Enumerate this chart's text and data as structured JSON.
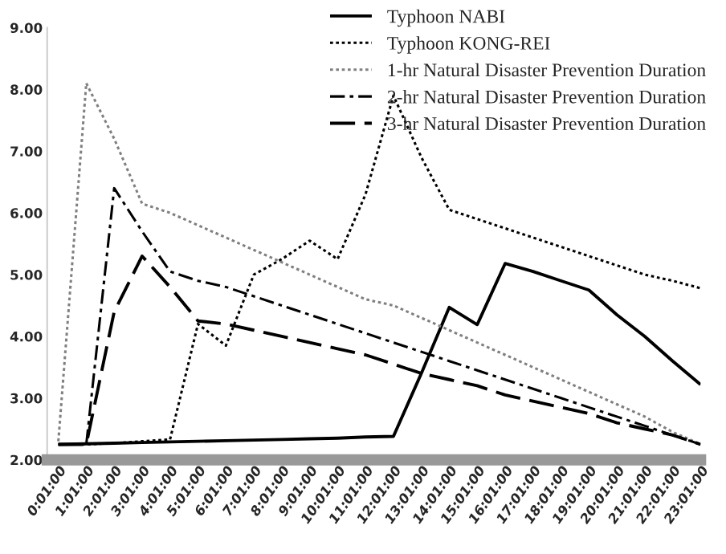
{
  "chart_data": {
    "type": "line",
    "categories": [
      "0:01:00",
      "1:01:00",
      "2:01:00",
      "3:01:00",
      "4:01:00",
      "5:01:00",
      "6:01:00",
      "7:01:00",
      "8:01:00",
      "9:01:00",
      "10:01:00",
      "11:01:00",
      "12:01:00",
      "13:01:00",
      "14:01:00",
      "15:01:00",
      "16:01:00",
      "17:01:00",
      "18:01:00",
      "19:01:00",
      "20:01:00",
      "21:01:00",
      "22:01:00",
      "23:01:00"
    ],
    "series": [
      {
        "name": "Typhoon NABI",
        "color": "#000000",
        "line_style": "solid",
        "values": [
          2.25,
          2.26,
          2.27,
          2.28,
          2.29,
          2.3,
          2.31,
          2.32,
          2.33,
          2.34,
          2.35,
          2.37,
          2.38,
          3.4,
          4.47,
          4.19,
          5.18,
          5.05,
          4.9,
          4.75,
          4.35,
          4.0,
          3.6,
          3.22
        ]
      },
      {
        "name": "Typhoon KONG-REI",
        "color": "#000000",
        "line_style": "dotted",
        "values": [
          2.25,
          2.25,
          2.27,
          2.3,
          2.33,
          4.2,
          3.85,
          5.0,
          5.25,
          5.55,
          5.25,
          6.3,
          7.9,
          6.9,
          6.05,
          5.9,
          5.75,
          5.6,
          5.45,
          5.3,
          5.15,
          5.0,
          4.9,
          4.78
        ]
      },
      {
        "name": "1-hr Natural Disaster Prevention Duration",
        "color": "#808080",
        "line_style": "dotted",
        "values": [
          2.3,
          8.1,
          7.2,
          6.15,
          6.0,
          5.8,
          5.6,
          5.4,
          5.2,
          5.0,
          4.8,
          4.6,
          4.5,
          4.3,
          4.1,
          3.9,
          3.7,
          3.5,
          3.3,
          3.1,
          2.9,
          2.7,
          2.45,
          2.25
        ]
      },
      {
        "name": "2-hr Natural Disaster Prevention Duration",
        "color": "#000000",
        "line_style": "dashdot",
        "values": [
          2.25,
          2.25,
          6.4,
          5.7,
          5.05,
          4.9,
          4.8,
          4.65,
          4.5,
          4.35,
          4.2,
          4.05,
          3.9,
          3.75,
          3.6,
          3.45,
          3.3,
          3.15,
          3.0,
          2.85,
          2.7,
          2.55,
          2.4,
          2.25
        ]
      },
      {
        "name": "3-hr Natural Disaster Prevention Duration",
        "color": "#000000",
        "line_style": "dashed",
        "values": [
          2.25,
          2.25,
          4.4,
          5.3,
          4.8,
          4.25,
          4.2,
          4.1,
          4.0,
          3.9,
          3.8,
          3.7,
          3.55,
          3.4,
          3.3,
          3.2,
          3.05,
          2.95,
          2.85,
          2.75,
          2.6,
          2.5,
          2.4,
          2.25
        ]
      }
    ],
    "ylim": [
      2,
      9
    ],
    "yticks": [
      {
        "value": 2,
        "label": "2.00"
      },
      {
        "value": 3,
        "label": "3.00"
      },
      {
        "value": 4,
        "label": "4.00"
      },
      {
        "value": 5,
        "label": "5.00"
      },
      {
        "value": 6,
        "label": "6.00"
      },
      {
        "value": 7,
        "label": "7.00"
      },
      {
        "value": 8,
        "label": "8.00"
      },
      {
        "value": 9,
        "label": "9.00"
      }
    ],
    "grid": false,
    "legend": "top right",
    "marker": "none"
  }
}
